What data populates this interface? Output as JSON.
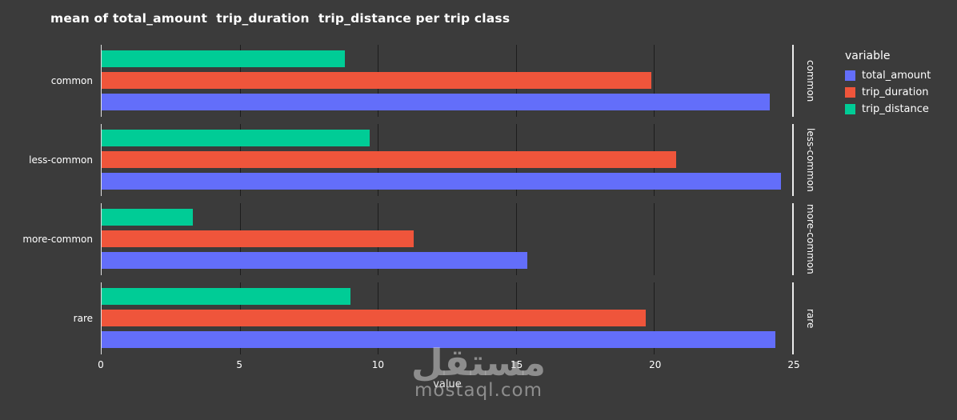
{
  "colors": {
    "background": "#3b3b3b",
    "text": "#ffffff",
    "gridline": "#2a2a2a",
    "axis_line": "#ffffff",
    "total_amount": "#636efa",
    "trip_duration": "#ef553b",
    "trip_distance": "#00cc96"
  },
  "chart_data": {
    "type": "bar",
    "orientation": "horizontal",
    "title": "mean of total_amount  trip_duration  trip_distance per trip class",
    "xlabel": "value",
    "xlim": [
      0,
      25
    ],
    "xticks": [
      0,
      5,
      10,
      15,
      20,
      25
    ],
    "grid": true,
    "facet_rows": [
      "common",
      "less-common",
      "more-common",
      "rare"
    ],
    "legend_title": "variable",
    "legend_position": "top-right",
    "series": [
      {
        "name": "total_amount",
        "color": "#636efa",
        "values": [
          24.2,
          24.6,
          15.4,
          24.4
        ]
      },
      {
        "name": "trip_duration",
        "color": "#ef553b",
        "values": [
          19.9,
          20.8,
          11.3,
          19.7
        ]
      },
      {
        "name": "trip_distance",
        "color": "#00cc96",
        "values": [
          8.8,
          9.7,
          3.3,
          9.0
        ]
      }
    ]
  },
  "watermark": {
    "arabic": "مستقل",
    "latin": "mostaql.com"
  }
}
